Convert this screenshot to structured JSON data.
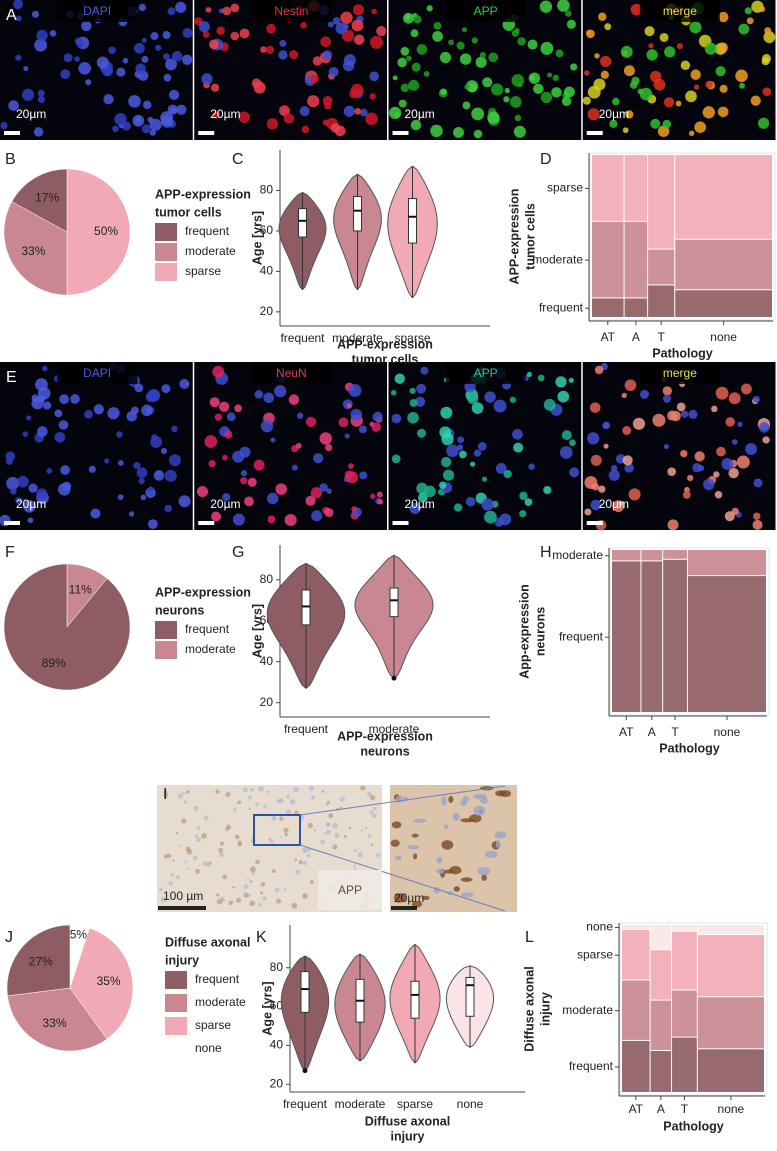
{
  "images": [
    {
      "panel": "A",
      "channels": [
        "DAPI",
        "Nestin",
        "APP",
        "merge"
      ],
      "channel_colors": [
        "#4a5ae0",
        "#e8304a",
        "#3cc83c",
        "#e8e040"
      ],
      "scale_bars": [
        "20µm",
        "20µm",
        "20µm",
        "20µm"
      ]
    },
    {
      "panel": "E",
      "channels": [
        "DAPI",
        "NeuN",
        "APP",
        "merge"
      ],
      "channel_colors": [
        "#4a5ae0",
        "#e8306a",
        "#30c0a0",
        "#e8e040"
      ],
      "scale_bars": [
        "20µm",
        "20µm",
        "20µm",
        "20µm"
      ]
    },
    {
      "panel": "I",
      "scale_bars": [
        "100 µm",
        "20µm"
      ],
      "stain": "APP"
    }
  ],
  "chart_data": [
    {
      "type": "pie",
      "panel": "B",
      "legend_title": [
        "APP-expression",
        "tumor cells"
      ],
      "categories": [
        "frequent",
        "moderate",
        "sparse"
      ],
      "values": [
        17,
        33,
        50
      ],
      "value_labels": [
        "17%",
        "33%",
        "50%"
      ],
      "colors": [
        "#8e5d63",
        "#c98891",
        "#f1aab5"
      ]
    },
    {
      "type": "violin",
      "panel": "C",
      "ylabel": "Age [yrs]",
      "xlabel": [
        "APP-expression",
        "tumor cells"
      ],
      "categories": [
        "frequent",
        "moderate",
        "sparse"
      ],
      "colors": [
        "#8e5d63",
        "#c98891",
        "#f1aab5"
      ],
      "ylim": [
        13,
        100
      ],
      "yticks": [
        20,
        40,
        60,
        80
      ],
      "stats": [
        {
          "min": 31,
          "q1": 57,
          "median": 65,
          "q3": 71,
          "max": 79
        },
        {
          "min": 31,
          "q1": 60,
          "median": 70,
          "q3": 77,
          "max": 88
        },
        {
          "min": 27,
          "q1": 54,
          "median": 67,
          "q3": 76,
          "max": 92
        }
      ]
    },
    {
      "type": "mosaic",
      "panel": "D",
      "ylabel": [
        "APP-expression",
        "tumor cells"
      ],
      "xlabel": "Pathology",
      "categories": [
        "AT",
        "A",
        "T",
        "none"
      ],
      "column_share": [
        18,
        13,
        15,
        54
      ],
      "series": [
        {
          "name": "frequent",
          "color": "#8e5d63",
          "values": [
            12,
            12,
            20,
            17
          ]
        },
        {
          "name": "moderate",
          "color": "#c98891",
          "values": [
            47,
            47,
            22,
            31
          ]
        },
        {
          "name": "sparse",
          "color": "#f1aab5",
          "values": [
            41,
            41,
            58,
            52
          ]
        }
      ]
    },
    {
      "type": "pie",
      "panel": "F",
      "legend_title": [
        "APP-expression",
        "neurons"
      ],
      "categories": [
        "frequent",
        "moderate"
      ],
      "values": [
        89,
        11
      ],
      "value_labels": [
        "89%",
        "11%"
      ],
      "colors": [
        "#8e5d63",
        "#c98891"
      ]
    },
    {
      "type": "violin",
      "panel": "G",
      "ylabel": "Age [yrs]",
      "xlabel": [
        "APP-expression",
        "neurons"
      ],
      "categories": [
        "frequent",
        "moderate"
      ],
      "colors": [
        "#8e5d63",
        "#c98891"
      ],
      "ylim": [
        13,
        97
      ],
      "yticks": [
        20,
        40,
        60,
        80
      ],
      "stats": [
        {
          "min": 27,
          "q1": 58,
          "median": 67,
          "q3": 75,
          "max": 88
        },
        {
          "min": 32,
          "q1": 62,
          "median": 70,
          "q3": 76,
          "max": 92,
          "outliers": [
            32
          ]
        }
      ]
    },
    {
      "type": "mosaic",
      "panel": "H",
      "ylabel": [
        "App-expression",
        "neurons"
      ],
      "xlabel": "Pathology",
      "categories": [
        "AT",
        "A",
        "T",
        "none"
      ],
      "column_share": [
        19,
        14,
        16,
        51
      ],
      "series": [
        {
          "name": "frequent",
          "color": "#8e5d63",
          "values": [
            93,
            93,
            94,
            84
          ]
        },
        {
          "name": "moderate",
          "color": "#c98891",
          "values": [
            7,
            7,
            6,
            16
          ]
        }
      ]
    },
    {
      "type": "pie",
      "panel": "J",
      "legend_title": [
        "Diffuse axonal",
        "injury"
      ],
      "categories": [
        "frequent",
        "moderate",
        "sparse",
        "none"
      ],
      "values": [
        27,
        33,
        35,
        5
      ],
      "value_labels": [
        "27%",
        "33%",
        "35%",
        "5%"
      ],
      "colors": [
        "#8e5d63",
        "#c98891",
        "#f1aab5",
        "#ffffff"
      ]
    },
    {
      "type": "violin",
      "panel": "K",
      "ylabel": "Age [yrs]",
      "xlabel": [
        "Diffuse axonal",
        "injury"
      ],
      "categories": [
        "frequent",
        "moderate",
        "sparse",
        "none"
      ],
      "colors": [
        "#8e5d63",
        "#c98891",
        "#f1aab5",
        "#fbe4e7"
      ],
      "ylim": [
        16,
        102
      ],
      "yticks": [
        20,
        40,
        60,
        80
      ],
      "stats": [
        {
          "min": 27,
          "q1": 57,
          "median": 69,
          "q3": 78,
          "max": 86,
          "outliers": [
            27
          ]
        },
        {
          "min": 32,
          "q1": 52,
          "median": 63,
          "q3": 74,
          "max": 87
        },
        {
          "min": 31,
          "q1": 54,
          "median": 66,
          "q3": 73,
          "max": 92
        },
        {
          "min": 39,
          "q1": 55,
          "median": 71,
          "q3": 75,
          "max": 81
        }
      ]
    },
    {
      "type": "mosaic",
      "panel": "L",
      "ylabel": [
        "Diffuse axonal",
        "injury"
      ],
      "xlabel": "Pathology",
      "categories": [
        "AT",
        "A",
        "T",
        "none"
      ],
      "column_share": [
        20,
        15,
        18,
        47
      ],
      "series": [
        {
          "name": "frequent",
          "color": "#8e5d63",
          "values": [
            31,
            25,
            33,
            26
          ]
        },
        {
          "name": "moderate",
          "color": "#c98891",
          "values": [
            36,
            30,
            28,
            31
          ]
        },
        {
          "name": "sparse",
          "color": "#f1aab5",
          "values": [
            30,
            30,
            35,
            37
          ]
        },
        {
          "name": "none",
          "color": "#fbe6e9",
          "values": [
            3,
            15,
            4,
            6
          ]
        }
      ]
    }
  ]
}
